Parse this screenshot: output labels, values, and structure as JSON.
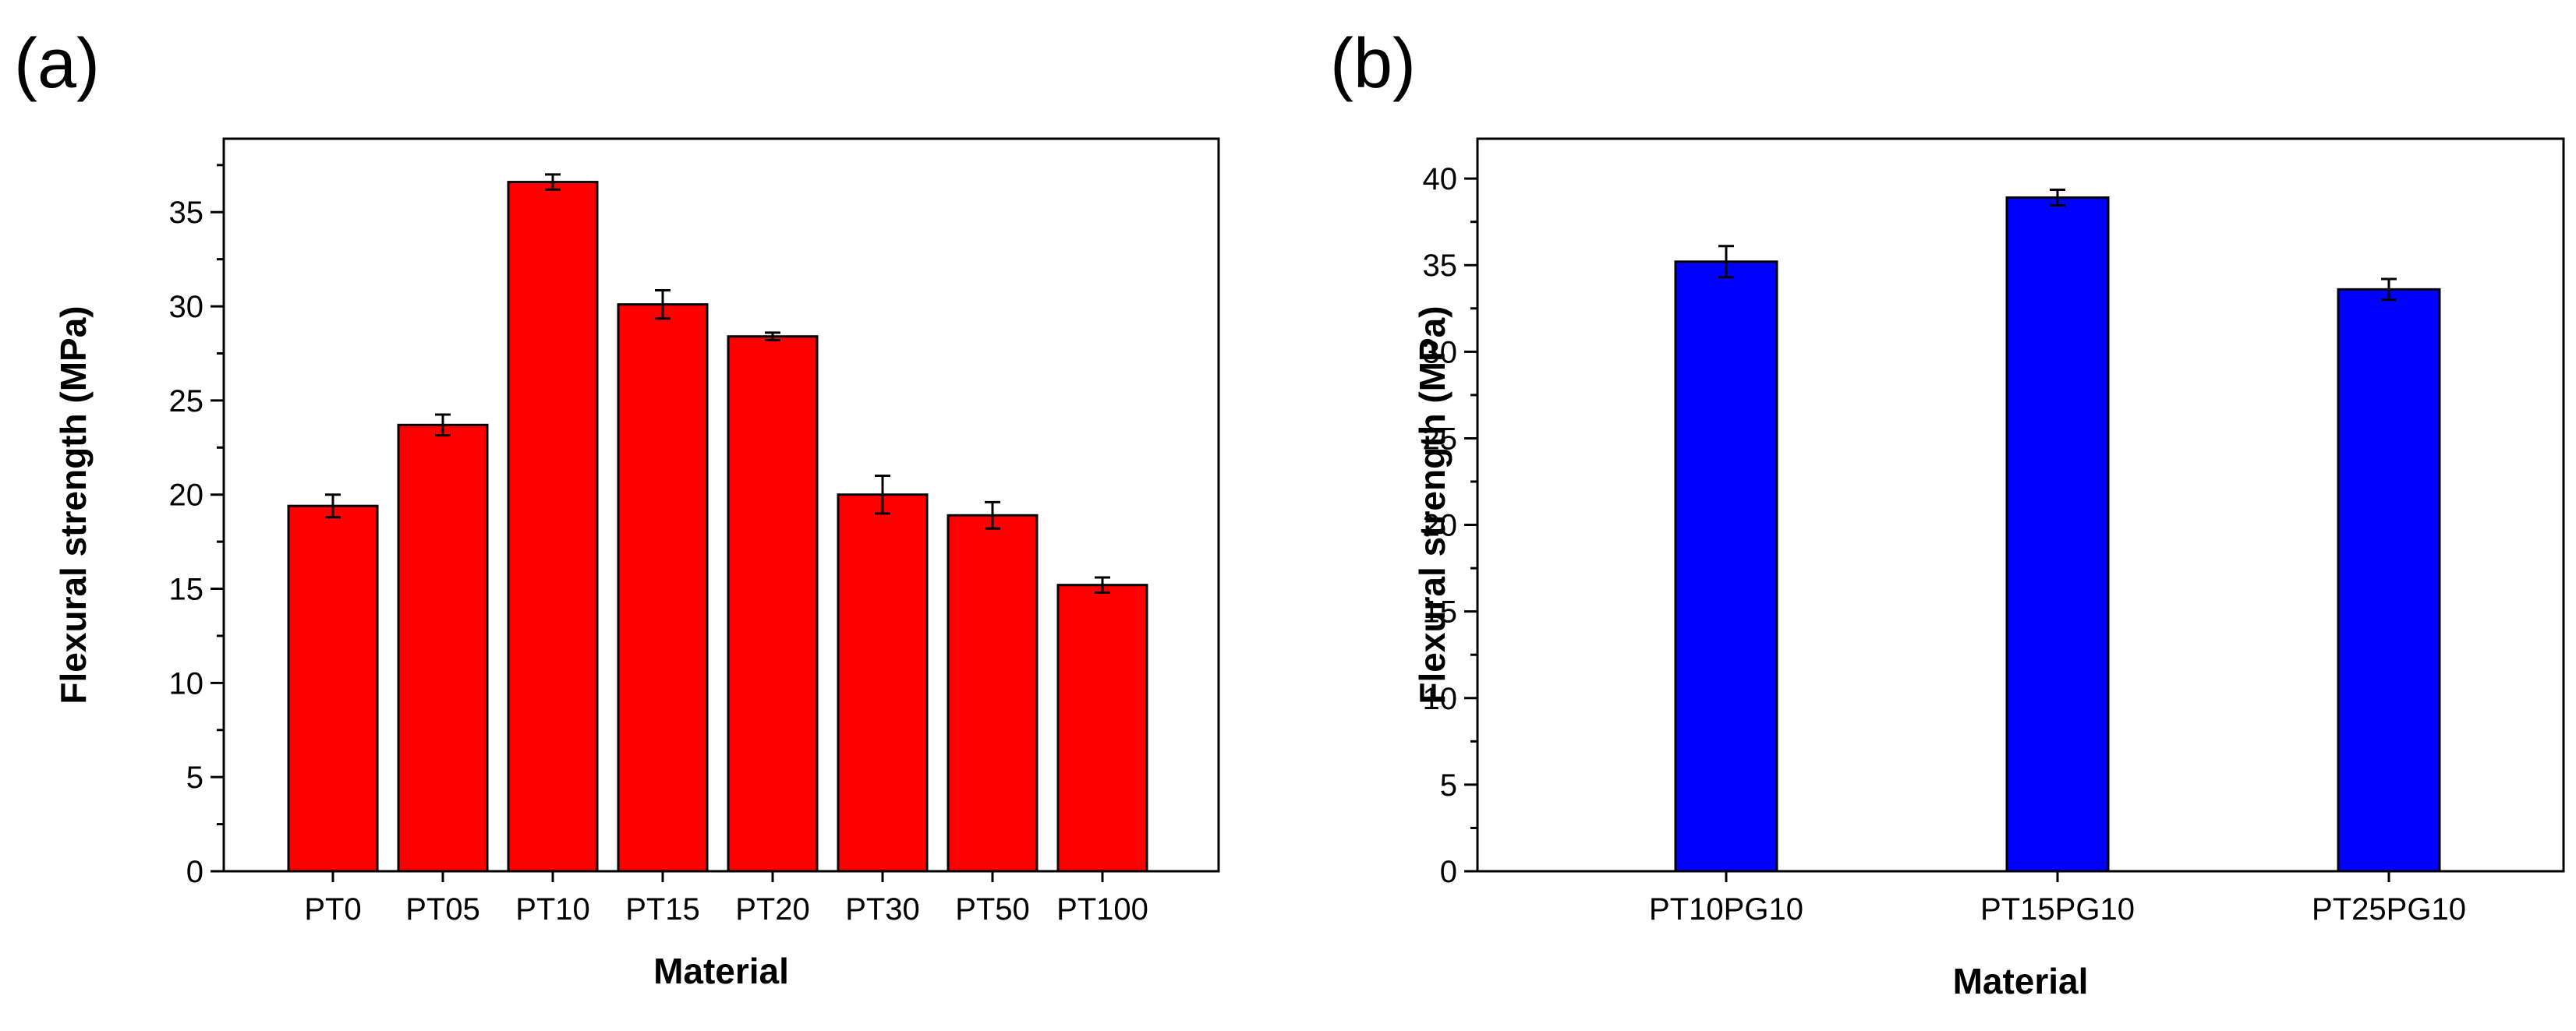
{
  "chart_data": [
    {
      "panel_label": "(a)",
      "type": "bar",
      "title": "",
      "xlabel": "Material",
      "ylabel": "Flexural strength (MPa)",
      "ylim": [
        0,
        38.9
      ],
      "yticks": [
        0,
        5,
        10,
        15,
        20,
        25,
        30,
        35
      ],
      "minor_ticks": true,
      "grid": false,
      "bar_color": "#ff0000",
      "categories": [
        "PT0",
        "PT05",
        "PT10",
        "PT15",
        "PT20",
        "PT30",
        "PT50",
        "PT100"
      ],
      "values": [
        19.4,
        23.7,
        36.6,
        30.1,
        28.4,
        20.0,
        18.9,
        15.2
      ],
      "errors": [
        0.6,
        0.55,
        0.4,
        0.75,
        0.2,
        1.0,
        0.7,
        0.4
      ]
    },
    {
      "panel_label": "(b)",
      "type": "bar",
      "title": "",
      "xlabel": "Material",
      "ylabel": "Flexural strength (MPa)",
      "ylim": [
        0,
        42.3
      ],
      "yticks": [
        0,
        5,
        10,
        15,
        20,
        25,
        30,
        35,
        40
      ],
      "minor_ticks": true,
      "grid": false,
      "bar_color": "#0000ff",
      "categories": [
        "PT10PG10",
        "PT15PG10",
        "PT25PG10"
      ],
      "values": [
        35.2,
        38.9,
        33.6
      ],
      "errors": [
        0.9,
        0.45,
        0.6
      ]
    }
  ]
}
